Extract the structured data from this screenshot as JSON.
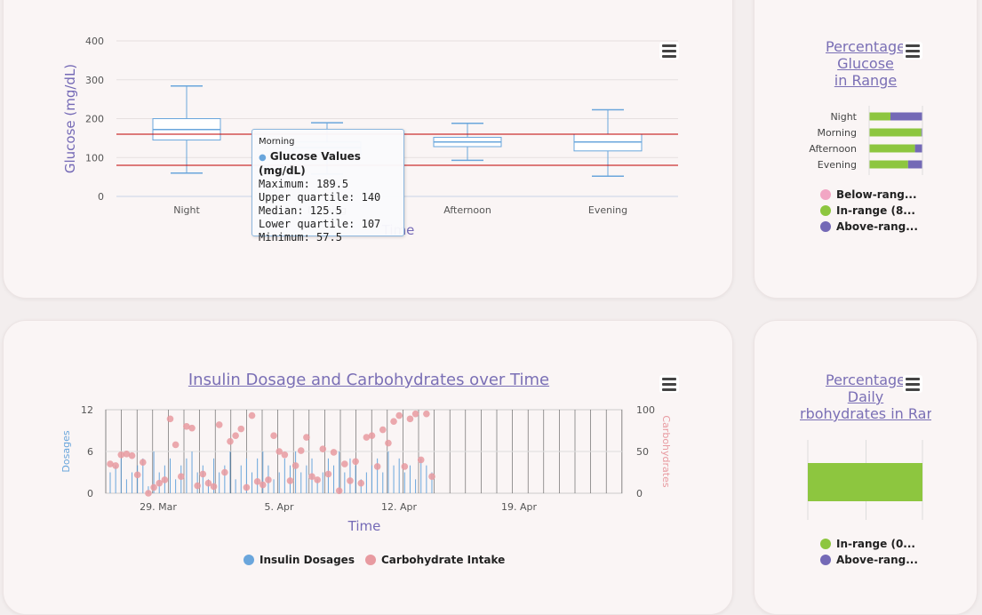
{
  "colors": {
    "box": "#6aa6dc",
    "range_line": "#c00000",
    "insulin": "#6aa6dc",
    "carbs": "#e89aa0",
    "below": "#f2a6c4",
    "in_range": "#8dc63f",
    "above": "#7469b6",
    "title": "#7a6fb5"
  },
  "chart_data": [
    {
      "type": "boxplot",
      "ylabel": "Glucose (mg/dL)",
      "xlabel": "Time",
      "ylim": [
        0,
        400
      ],
      "yticks": [
        0,
        100,
        200,
        300,
        400
      ],
      "range_lines": [
        80,
        160
      ],
      "categories": [
        "Night",
        "Morning",
        "Afternoon",
        "Evening"
      ],
      "boxes": [
        {
          "min": 60,
          "q1": 145,
          "median": 172,
          "q3": 200,
          "max": 284
        },
        {
          "min": 57.5,
          "q1": 107,
          "median": 125.5,
          "q3": 140,
          "max": 189.5
        },
        {
          "min": 93,
          "q1": 128,
          "median": 140,
          "q3": 152,
          "max": 188
        },
        {
          "min": 52,
          "q1": 117,
          "median": 140,
          "q3": 160,
          "max": 223
        }
      ],
      "tooltip": {
        "header": "Morning",
        "series": "Glucose Values (mg/dL)",
        "maximum": "Maximum: 189.5",
        "upper": "Upper quartile: 140",
        "median": "Median: 125.5",
        "lower": "Lower quartile: 107",
        "minimum": "Minimum: 57.5"
      }
    },
    {
      "type": "bar",
      "stacked": true,
      "orientation": "horizontal",
      "title": "Percentage Glucose in Range",
      "title_lines": [
        "Percentage",
        "Glucose",
        "in Range"
      ],
      "categories": [
        "Night",
        "Morning",
        "Afternoon",
        "Evening"
      ],
      "series": [
        {
          "name": "Below-rang...",
          "values": [
            0,
            0,
            0,
            0
          ]
        },
        {
          "name": "In-range (8...",
          "values": [
            40,
            98,
            86,
            73
          ]
        },
        {
          "name": "Above-rang...",
          "values": [
            60,
            2,
            14,
            27
          ]
        }
      ]
    },
    {
      "type": "line",
      "title": "Insulin Dosage and Carbohydrates over Time",
      "xlabel": "Time",
      "ylabel_left": "Dosages",
      "ylabel_right": "Carbohydrates",
      "ylim_left": [
        0,
        12
      ],
      "ylim_right": [
        0,
        100
      ],
      "yticks_left": [
        0,
        6,
        12
      ],
      "yticks_right": [
        0,
        50,
        100
      ],
      "xticks": [
        "29. Mar",
        "5. Apr",
        "12. Apr",
        "19. Apr"
      ],
      "series": [
        {
          "name": "Insulin Dosages",
          "values": [
            3,
            4,
            5,
            2,
            3,
            4,
            5,
            1,
            6,
            3,
            4,
            5,
            2,
            4,
            5,
            6,
            3,
            4,
            2,
            5,
            3,
            4,
            6,
            2,
            4,
            5,
            3,
            5,
            6,
            4,
            2,
            3,
            5,
            4,
            6,
            3,
            4,
            5,
            2,
            3,
            5,
            4,
            6,
            3,
            5,
            4,
            2,
            3,
            4,
            5,
            3,
            6,
            4,
            5,
            3,
            4,
            2,
            5,
            4,
            3
          ]
        },
        {
          "name": "Carbohydrate Intake",
          "values": [
            35,
            33,
            46,
            47,
            45,
            22,
            37,
            0,
            7,
            12,
            16,
            89,
            58,
            20,
            80,
            78,
            9,
            23,
            12,
            8,
            82,
            25,
            62,
            69,
            77,
            7,
            93,
            14,
            10,
            16,
            69,
            50,
            46,
            15,
            33,
            51,
            67,
            20,
            16,
            53,
            23,
            49,
            3,
            35,
            15,
            38,
            12,
            67,
            69,
            32,
            76,
            60,
            86,
            93,
            32,
            89,
            95,
            40,
            95,
            20
          ]
        }
      ]
    },
    {
      "type": "bar",
      "stacked": true,
      "orientation": "vertical",
      "title_lines": [
        "Percentage",
        "Daily",
        "rbohydrates in Rar"
      ],
      "series": [
        {
          "name": "In-range (0...",
          "values": [
            100
          ]
        },
        {
          "name": "Above-rang...",
          "values": [
            0
          ]
        }
      ]
    }
  ],
  "legend_bottom": [
    {
      "label": "Insulin Dosages"
    },
    {
      "label": "Carbohydrate Intake"
    }
  ],
  "menu_icon": "hamburger-menu-icon"
}
